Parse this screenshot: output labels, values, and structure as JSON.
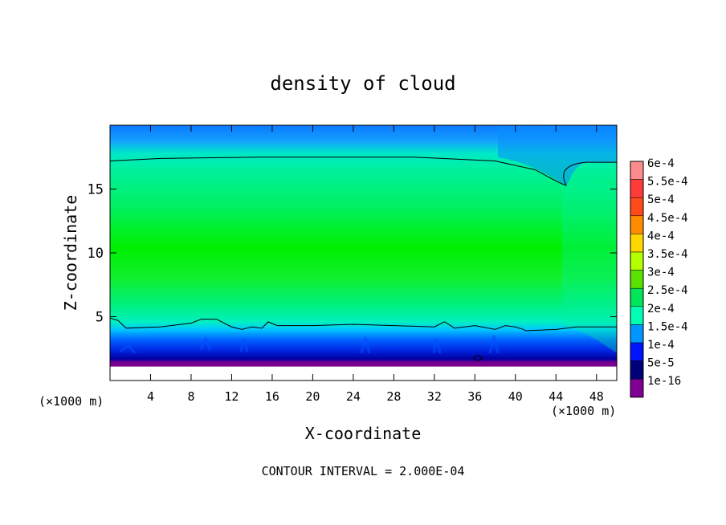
{
  "chart_data": {
    "type": "heatmap",
    "title": "density of cloud",
    "xlabel": "X-coordinate",
    "ylabel": "Z-coordinate",
    "x_unit_left": "(×1000 m)",
    "x_unit_right": "(×1000 m)",
    "footer": "CONTOUR INTERVAL = 2.000E-04",
    "xlim": [
      0,
      50
    ],
    "ylim": [
      0,
      20
    ],
    "xticks": [
      4,
      8,
      12,
      16,
      20,
      24,
      28,
      32,
      36,
      40,
      44,
      48
    ],
    "yticks": [
      5,
      10,
      15
    ],
    "cloud_base_z": 4.3,
    "cloud_top_z": 17.5,
    "top_dip": {
      "x": 45,
      "z": 15.3
    },
    "legend": {
      "position": "right",
      "levels": [
        "6e-4",
        "5.5e-4",
        "5e-4",
        "4.5e-4",
        "4e-4",
        "3.5e-4",
        "3e-4",
        "2.5e-4",
        "2e-4",
        "1.5e-4",
        "1e-4",
        "5e-5",
        "1e-16"
      ],
      "colors": [
        "#ff8c8c",
        "#ff3a3a",
        "#ff4a1a",
        "#ff8c00",
        "#ffd700",
        "#b4ff00",
        "#5ae100",
        "#00e65a",
        "#00ffb4",
        "#0096ff",
        "#0014ff",
        "#000078",
        "#800096"
      ]
    }
  }
}
